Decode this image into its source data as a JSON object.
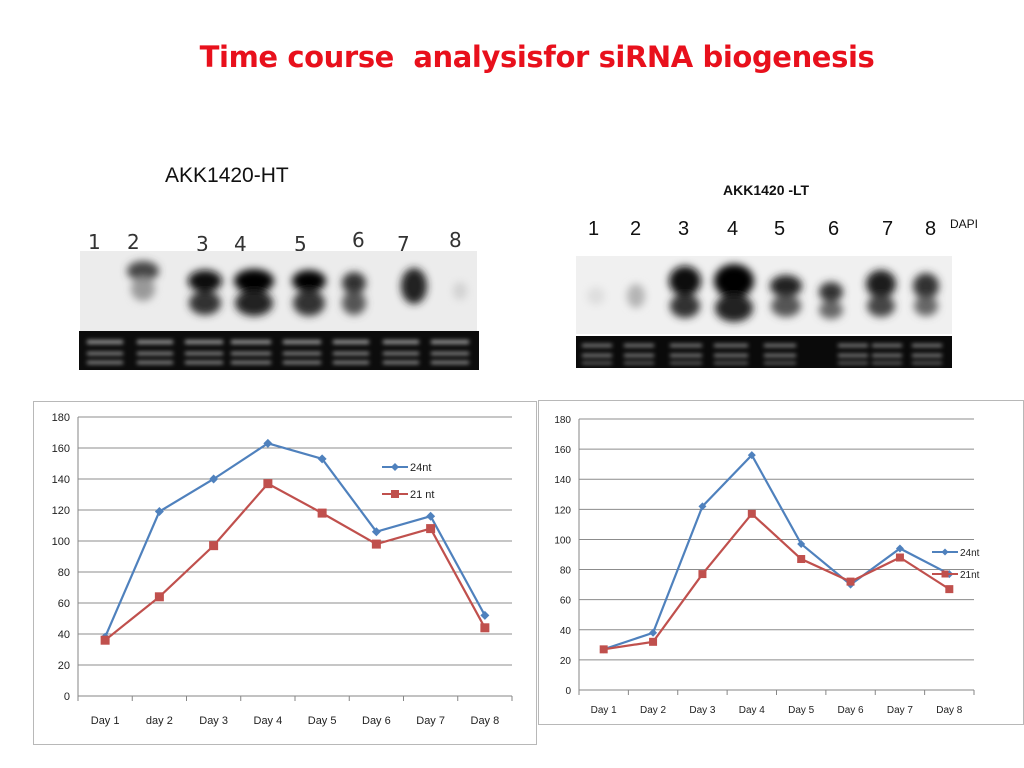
{
  "title": "Time course  analysisfor siRNA biogenesis",
  "gels": {
    "left": {
      "label": "AKK1420-HT",
      "lanes": [
        "1",
        "2",
        "3",
        "4",
        "5",
        "6",
        "7",
        "8"
      ]
    },
    "right": {
      "label": "AKK1420 -LT",
      "lanes": [
        "1",
        "2",
        "3",
        "4",
        "5",
        "6",
        "7",
        "8"
      ],
      "stain": "DAPI"
    }
  },
  "chart_data": [
    {
      "type": "line",
      "categories": [
        "Day 1",
        "day 2",
        "Day 3",
        "Day 4",
        "Day 5",
        "Day 6",
        "Day 7",
        "Day 8"
      ],
      "ylim": [
        0,
        180
      ],
      "yticks": [
        0,
        20,
        40,
        60,
        80,
        100,
        120,
        140,
        160,
        180
      ],
      "grid": true,
      "legend": "right",
      "series": [
        {
          "name": "24nt",
          "color": "#4f81bd",
          "marker": "diamond",
          "values": [
            38,
            119,
            140,
            163,
            153,
            106,
            116,
            52
          ]
        },
        {
          "name": "21 nt",
          "color": "#c0504d",
          "marker": "square",
          "values": [
            36,
            64,
            97,
            137,
            118,
            98,
            108,
            44
          ]
        }
      ]
    },
    {
      "type": "line",
      "categories": [
        "Day 1",
        "Day 2",
        "Day 3",
        "Day 4",
        "Day 5",
        "Day 6",
        "Day 7",
        "Day 8"
      ],
      "ylim": [
        0,
        180
      ],
      "yticks": [
        0,
        20,
        40,
        60,
        80,
        100,
        120,
        140,
        160,
        180
      ],
      "grid": true,
      "legend": "right",
      "series": [
        {
          "name": "24nt",
          "color": "#4f81bd",
          "marker": "diamond",
          "values": [
            27,
            38,
            122,
            156,
            97,
            70,
            94,
            77
          ]
        },
        {
          "name": "21nt",
          "color": "#c0504d",
          "marker": "square",
          "values": [
            27,
            32,
            77,
            117,
            87,
            72,
            88,
            67
          ]
        }
      ]
    }
  ]
}
